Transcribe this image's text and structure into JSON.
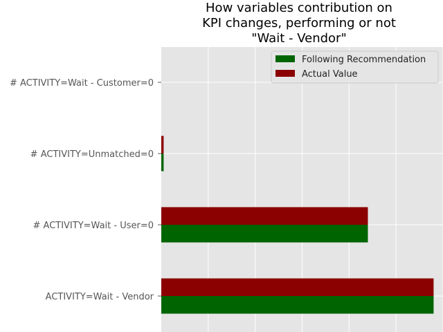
{
  "chart_data": {
    "type": "bar",
    "orientation": "horizontal",
    "title_lines": [
      "How variables contribution on",
      "KPI changes, performing or not",
      "\"Wait - Vendor\""
    ],
    "categories": [
      "ACTIVITY=Wait - Vendor",
      "# ACTIVITY=Wait - User=0",
      "# ACTIVITY=Unmatched=0",
      "# ACTIVITY=Wait - Customer=0"
    ],
    "series": [
      {
        "name": "Following Recommendation",
        "color": "#006400",
        "values": [
          0.58,
          0.44,
          0.005,
          0.0
        ]
      },
      {
        "name": "Actual Value",
        "color": "#8b0000",
        "values": [
          0.58,
          0.44,
          0.005,
          0.0
        ]
      }
    ],
    "xlim": [
      0,
      0.6
    ],
    "grid": true,
    "legend_position": "top-right",
    "plot_background": "#e5e5e5"
  }
}
